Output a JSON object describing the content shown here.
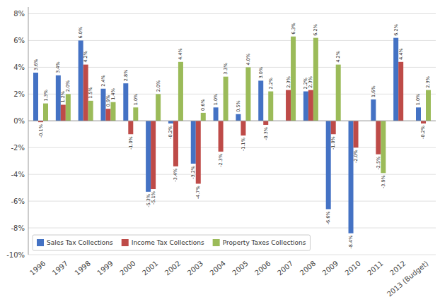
{
  "chart_data": {
    "type": "bar",
    "categories": [
      "1996",
      "1997",
      "1998",
      "1999",
      "2000",
      "2001",
      "2002",
      "2003",
      "2004",
      "2005",
      "2006",
      "2007",
      "2008",
      "2009",
      "2010",
      "2011",
      "2012",
      "2013 (Budget)"
    ],
    "series": [
      {
        "name": "Sales Tax Collections",
        "color": "#4472C4",
        "values": [
          3.6,
          3.4,
          6.0,
          2.4,
          2.8,
          -5.3,
          -0.2,
          -3.2,
          1.0,
          0.5,
          3.0,
          0.0,
          2.2,
          -6.6,
          -8.4,
          1.6,
          6.2,
          1.0
        ],
        "value_labels": [
          "3.6%",
          "3.4%",
          "6.0%",
          "2.4%",
          "2.8%",
          "-5.3%",
          "-0.2%",
          "-3.2%",
          "1.0%",
          "0.5%",
          "3.0%",
          null,
          "2.2%",
          "-6.6%",
          "-8.4%",
          "1.6%",
          "6.2%",
          "1.0%"
        ]
      },
      {
        "name": "Income Tax Collections",
        "color": "#BE4B48",
        "values": [
          -0.1,
          1.2,
          4.2,
          0.9,
          -1.0,
          -5.1,
          -3.4,
          -4.7,
          -2.3,
          -1.1,
          -0.3,
          2.3,
          2.3,
          -1.0,
          -2.0,
          -2.5,
          4.4,
          -0.2
        ],
        "value_labels": [
          "-0.1%",
          "1.2%",
          "4.2%",
          "0.9%",
          "-1.0%",
          "-5.1%",
          "-3.4%",
          "-4.7%",
          "-2.3%",
          "-1.1%",
          "-0.3%",
          "2.3%",
          "2.3%",
          "-1.0%",
          "-2.0%",
          "-2.5%",
          "4.4%",
          "-0.2%"
        ]
      },
      {
        "name": "Property Taxes Collections",
        "color": "#9BBB59",
        "values": [
          1.3,
          2.0,
          1.5,
          1.4,
          1.0,
          2.0,
          4.4,
          0.6,
          3.3,
          4.0,
          2.2,
          6.3,
          6.2,
          4.2,
          0.0,
          -3.9,
          0.0,
          2.3
        ],
        "value_labels": [
          "1.3%",
          "2.0%",
          "1.5%",
          "1.4%",
          "1.0%",
          "2.0%",
          "4.4%",
          "0.6%",
          "3.3%",
          "4.0%",
          "2.2%",
          "6.3%",
          "6.2%",
          "4.2%",
          null,
          "-3.9%",
          null,
          "2.3%"
        ]
      }
    ],
    "ylim": [
      -10,
      8.5
    ],
    "yticks": [
      {
        "value": -10,
        "label": "-10%"
      },
      {
        "value": -8,
        "label": "-8%"
      },
      {
        "value": -6,
        "label": "-6%"
      },
      {
        "value": -4,
        "label": "-4%"
      },
      {
        "value": -2,
        "label": "-2%"
      },
      {
        "value": 0,
        "label": "0%"
      },
      {
        "value": 2,
        "label": "2%"
      },
      {
        "value": 4,
        "label": "4%"
      },
      {
        "value": 6,
        "label": "6%"
      },
      {
        "value": 8,
        "label": "8%"
      }
    ],
    "grid": true,
    "legend": "lower left",
    "data_labels": true
  }
}
